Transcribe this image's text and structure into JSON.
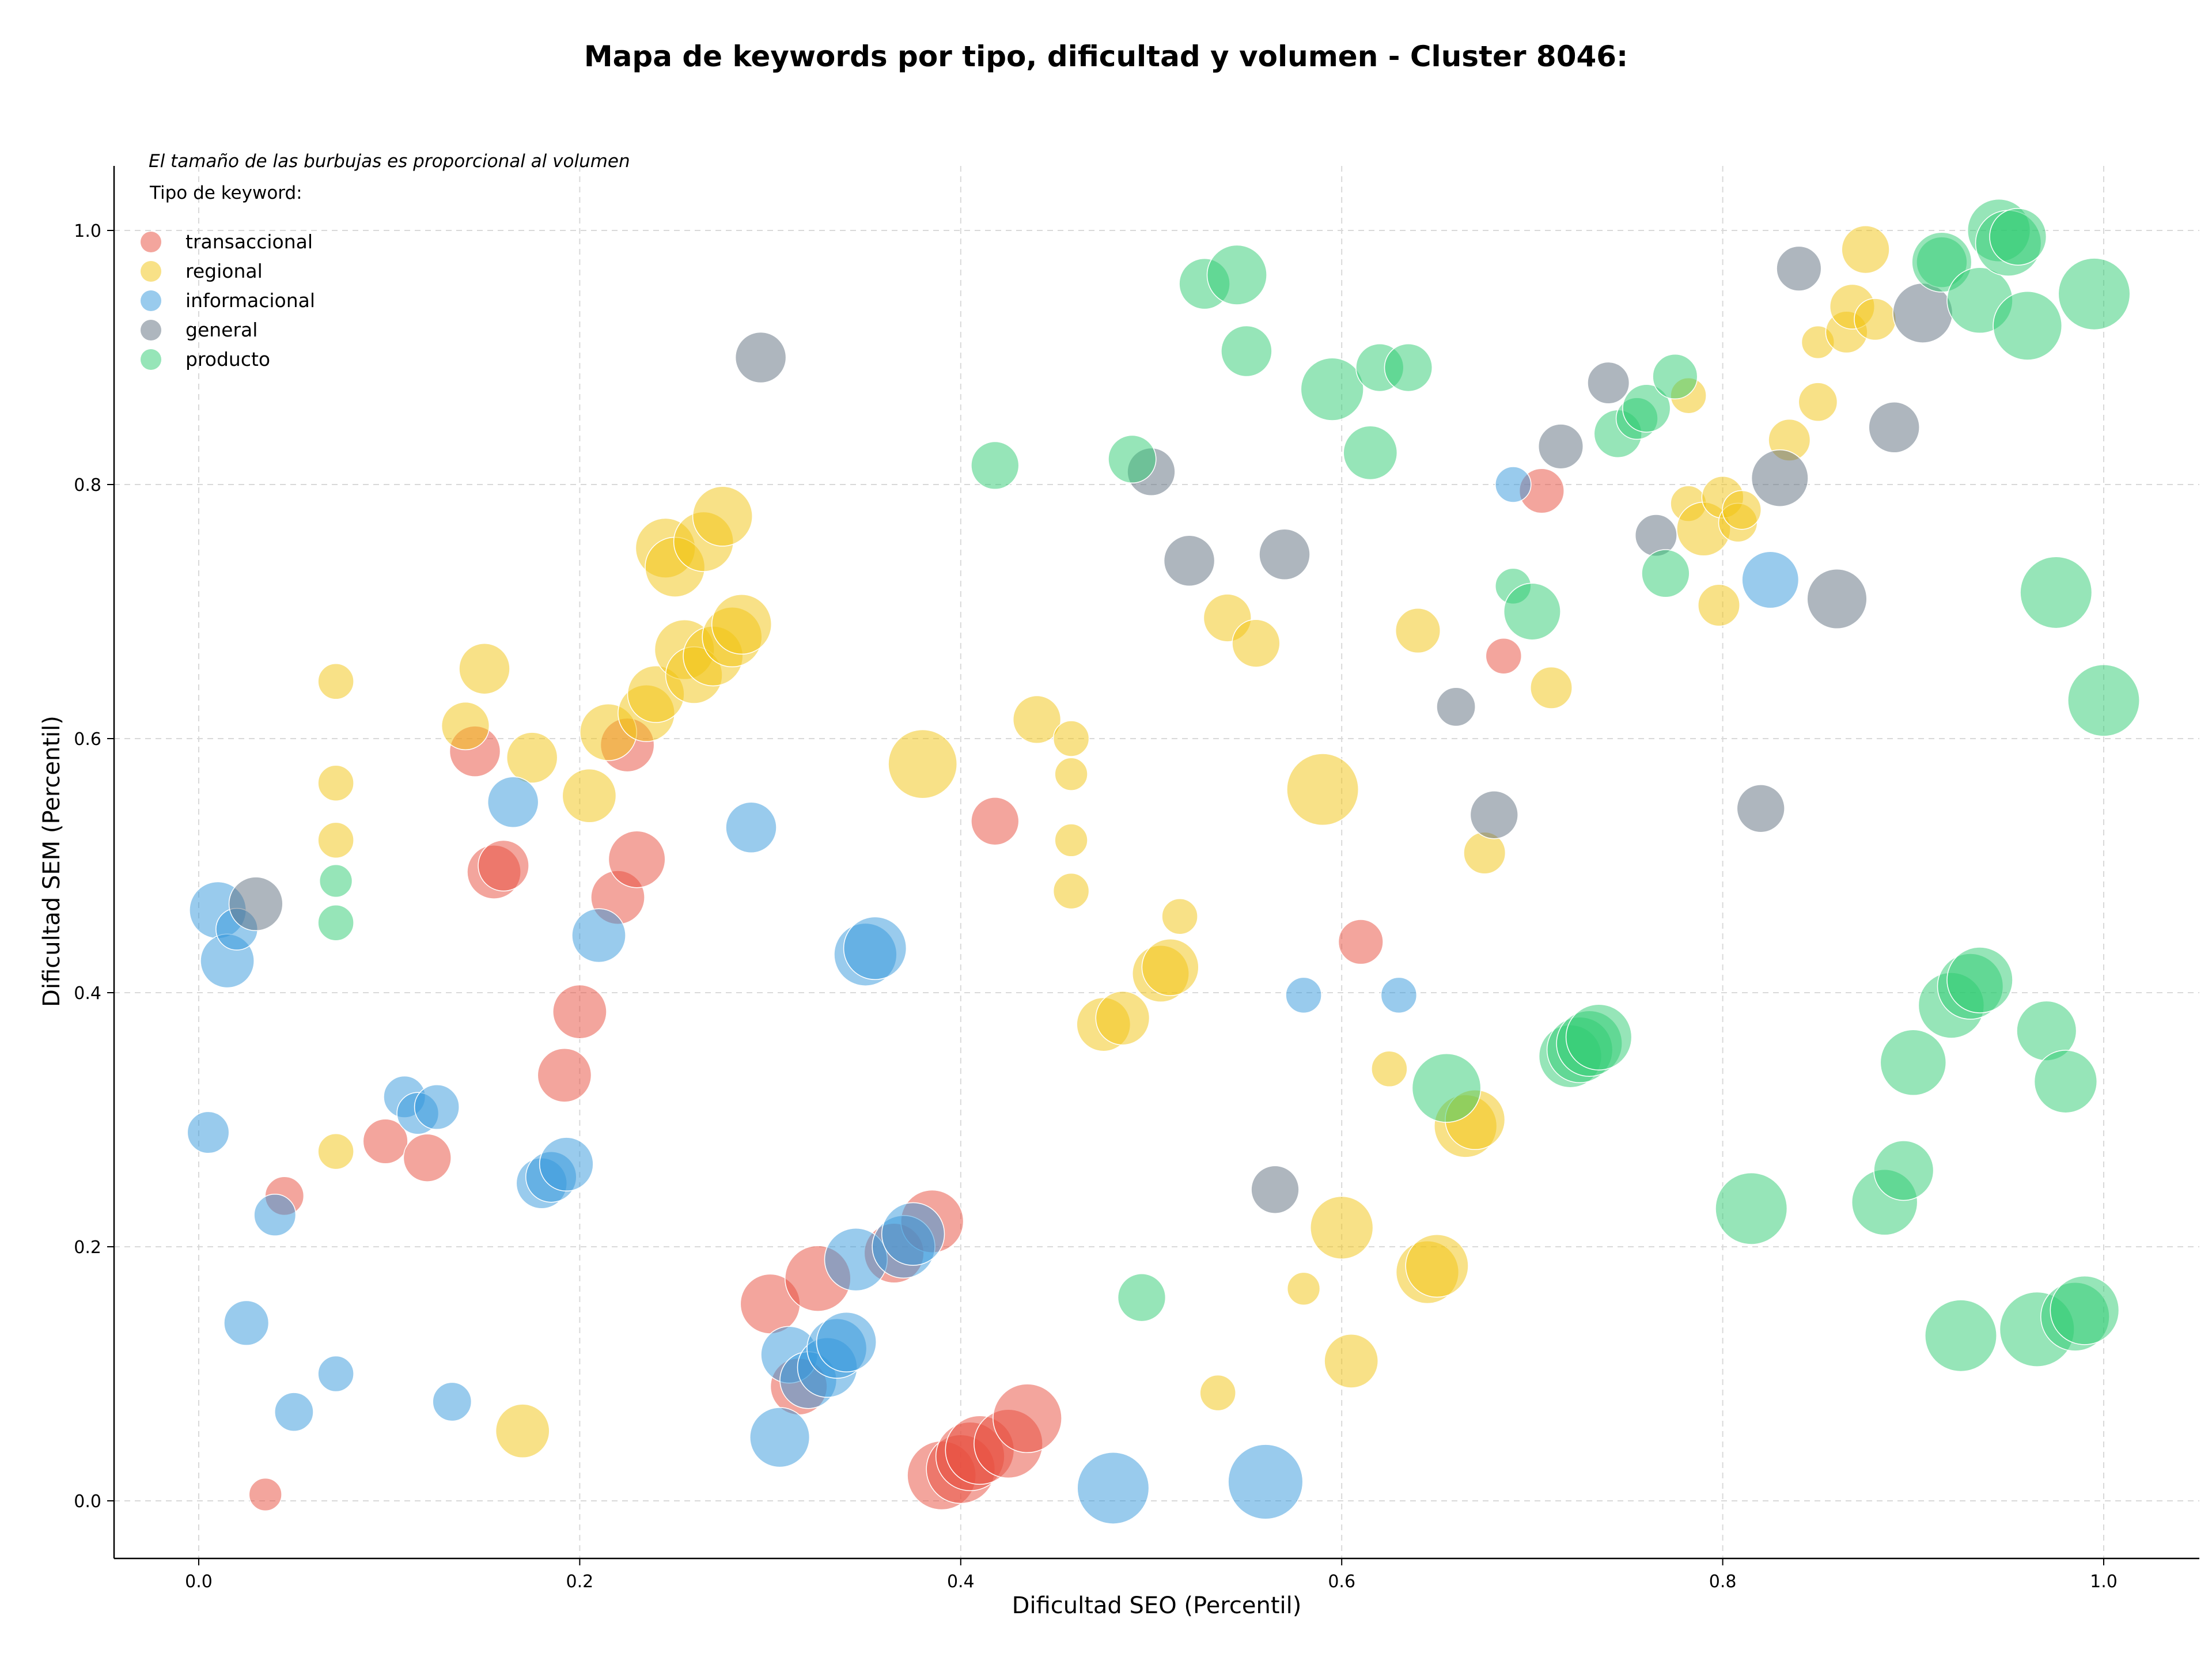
{
  "chart_data": {
    "type": "scatter",
    "title": "Mapa de keywords por tipo, dificultad y volumen - Cluster 8046:",
    "xlabel": "Dificultad SEO (Percentil)",
    "ylabel": "Dificultad SEM (Percentil)",
    "note": "El tamaño de las burbujas es proporcional al volumen",
    "legend_title": "Tipo de keyword:",
    "legend_position": "top-left",
    "xlim": [
      -0.045,
      1.048
    ],
    "ylim": [
      -0.045,
      1.05
    ],
    "x_ticks": [
      "0.0",
      "0.2",
      "0.4",
      "0.6",
      "0.8",
      "1.0"
    ],
    "y_ticks": [
      "0.0",
      "0.2",
      "0.4",
      "0.6",
      "0.8",
      "1.0"
    ],
    "grid": true,
    "series": [
      {
        "name": "transaccional",
        "color": "#e74c3c",
        "points": [
          [
            0.035,
            0.005,
            0.2
          ],
          [
            0.045,
            0.24,
            0.3
          ],
          [
            0.098,
            0.283,
            0.4
          ],
          [
            0.12,
            0.27,
            0.45
          ],
          [
            0.145,
            0.59,
            0.5
          ],
          [
            0.155,
            0.495,
            0.55
          ],
          [
            0.16,
            0.5,
            0.5
          ],
          [
            0.192,
            0.335,
            0.55
          ],
          [
            0.2,
            0.385,
            0.55
          ],
          [
            0.22,
            0.475,
            0.55
          ],
          [
            0.225,
            0.595,
            0.55
          ],
          [
            0.23,
            0.505,
            0.6
          ],
          [
            0.3,
            0.155,
            0.65
          ],
          [
            0.315,
            0.09,
            0.6
          ],
          [
            0.325,
            0.175,
            0.75
          ],
          [
            0.365,
            0.195,
            0.65
          ],
          [
            0.385,
            0.22,
            0.7
          ],
          [
            0.39,
            0.02,
            0.8
          ],
          [
            0.4,
            0.025,
            0.8
          ],
          [
            0.405,
            0.035,
            0.8
          ],
          [
            0.41,
            0.04,
            0.8
          ],
          [
            0.425,
            0.045,
            0.8
          ],
          [
            0.435,
            0.065,
            0.8
          ],
          [
            0.418,
            0.535,
            0.45
          ],
          [
            0.61,
            0.44,
            0.4
          ],
          [
            0.685,
            0.665,
            0.25
          ],
          [
            0.705,
            0.795,
            0.4
          ]
        ]
      },
      {
        "name": "regional",
        "color": "#f1c40f",
        "points": [
          [
            0.072,
            0.645,
            0.25
          ],
          [
            0.072,
            0.565,
            0.25
          ],
          [
            0.072,
            0.52,
            0.25
          ],
          [
            0.072,
            0.275,
            0.25
          ],
          [
            0.14,
            0.61,
            0.45
          ],
          [
            0.15,
            0.655,
            0.5
          ],
          [
            0.17,
            0.055,
            0.55
          ],
          [
            0.175,
            0.585,
            0.5
          ],
          [
            0.205,
            0.555,
            0.55
          ],
          [
            0.215,
            0.605,
            0.6
          ],
          [
            0.235,
            0.62,
            0.6
          ],
          [
            0.24,
            0.635,
            0.6
          ],
          [
            0.245,
            0.75,
            0.65
          ],
          [
            0.25,
            0.735,
            0.65
          ],
          [
            0.255,
            0.67,
            0.65
          ],
          [
            0.26,
            0.65,
            0.6
          ],
          [
            0.27,
            0.665,
            0.65
          ],
          [
            0.265,
            0.755,
            0.65
          ],
          [
            0.275,
            0.775,
            0.65
          ],
          [
            0.28,
            0.68,
            0.65
          ],
          [
            0.285,
            0.69,
            0.65
          ],
          [
            0.38,
            0.58,
            0.8
          ],
          [
            0.44,
            0.615,
            0.45
          ],
          [
            0.458,
            0.6,
            0.25
          ],
          [
            0.458,
            0.572,
            0.2
          ],
          [
            0.458,
            0.52,
            0.2
          ],
          [
            0.458,
            0.48,
            0.25
          ],
          [
            0.475,
            0.375,
            0.55
          ],
          [
            0.485,
            0.38,
            0.55
          ],
          [
            0.505,
            0.415,
            0.6
          ],
          [
            0.51,
            0.42,
            0.6
          ],
          [
            0.515,
            0.46,
            0.25
          ],
          [
            0.535,
            0.085,
            0.25
          ],
          [
            0.54,
            0.695,
            0.45
          ],
          [
            0.555,
            0.675,
            0.45
          ],
          [
            0.58,
            0.167,
            0.2
          ],
          [
            0.59,
            0.56,
            0.85
          ],
          [
            0.6,
            0.215,
            0.7
          ],
          [
            0.605,
            0.11,
            0.55
          ],
          [
            0.625,
            0.34,
            0.25
          ],
          [
            0.64,
            0.685,
            0.4
          ],
          [
            0.645,
            0.18,
            0.7
          ],
          [
            0.65,
            0.185,
            0.7
          ],
          [
            0.665,
            0.295,
            0.7
          ],
          [
            0.67,
            0.3,
            0.65
          ],
          [
            0.675,
            0.51,
            0.35
          ],
          [
            0.71,
            0.64,
            0.35
          ],
          [
            0.782,
            0.785,
            0.25
          ],
          [
            0.782,
            0.87,
            0.25
          ],
          [
            0.79,
            0.765,
            0.55
          ],
          [
            0.798,
            0.705,
            0.35
          ],
          [
            0.8,
            0.79,
            0.35
          ],
          [
            0.808,
            0.77,
            0.3
          ],
          [
            0.81,
            0.78,
            0.3
          ],
          [
            0.835,
            0.835,
            0.35
          ],
          [
            0.85,
            0.912,
            0.2
          ],
          [
            0.85,
            0.865,
            0.3
          ],
          [
            0.865,
            0.92,
            0.35
          ],
          [
            0.868,
            0.94,
            0.4
          ],
          [
            0.875,
            0.985,
            0.45
          ],
          [
            0.88,
            0.93,
            0.35
          ]
        ]
      },
      {
        "name": "informacional",
        "color": "#3498db",
        "points": [
          [
            0.005,
            0.29,
            0.35
          ],
          [
            0.01,
            0.465,
            0.6
          ],
          [
            0.015,
            0.425,
            0.55
          ],
          [
            0.02,
            0.45,
            0.35
          ],
          [
            0.025,
            0.14,
            0.4
          ],
          [
            0.04,
            0.225,
            0.35
          ],
          [
            0.05,
            0.07,
            0.3
          ],
          [
            0.072,
            0.1,
            0.25
          ],
          [
            0.108,
            0.318,
            0.35
          ],
          [
            0.115,
            0.305,
            0.35
          ],
          [
            0.125,
            0.31,
            0.4
          ],
          [
            0.133,
            0.078,
            0.3
          ],
          [
            0.165,
            0.55,
            0.5
          ],
          [
            0.18,
            0.25,
            0.5
          ],
          [
            0.185,
            0.255,
            0.5
          ],
          [
            0.193,
            0.265,
            0.55
          ],
          [
            0.21,
            0.445,
            0.55
          ],
          [
            0.29,
            0.53,
            0.5
          ],
          [
            0.305,
            0.05,
            0.65
          ],
          [
            0.31,
            0.115,
            0.6
          ],
          [
            0.32,
            0.095,
            0.6
          ],
          [
            0.33,
            0.105,
            0.65
          ],
          [
            0.335,
            0.12,
            0.65
          ],
          [
            0.34,
            0.125,
            0.65
          ],
          [
            0.345,
            0.19,
            0.7
          ],
          [
            0.35,
            0.43,
            0.7
          ],
          [
            0.355,
            0.435,
            0.7
          ],
          [
            0.37,
            0.2,
            0.7
          ],
          [
            0.375,
            0.21,
            0.7
          ],
          [
            0.48,
            0.01,
            0.85
          ],
          [
            0.56,
            0.015,
            0.9
          ],
          [
            0.58,
            0.398,
            0.25
          ],
          [
            0.63,
            0.398,
            0.25
          ],
          [
            0.69,
            0.8,
            0.25
          ],
          [
            0.825,
            0.725,
            0.6
          ]
        ]
      },
      {
        "name": "general",
        "color": "#5d6d7e",
        "points": [
          [
            0.03,
            0.47,
            0.55
          ],
          [
            0.295,
            0.9,
            0.5
          ],
          [
            0.5,
            0.81,
            0.45
          ],
          [
            0.52,
            0.74,
            0.5
          ],
          [
            0.565,
            0.245,
            0.45
          ],
          [
            0.57,
            0.745,
            0.5
          ],
          [
            0.66,
            0.625,
            0.3
          ],
          [
            0.68,
            0.54,
            0.45
          ],
          [
            0.715,
            0.83,
            0.4
          ],
          [
            0.74,
            0.88,
            0.35
          ],
          [
            0.765,
            0.76,
            0.35
          ],
          [
            0.82,
            0.545,
            0.45
          ],
          [
            0.83,
            0.805,
            0.6
          ],
          [
            0.84,
            0.97,
            0.4
          ],
          [
            0.86,
            0.71,
            0.65
          ],
          [
            0.89,
            0.845,
            0.5
          ],
          [
            0.905,
            0.935,
            0.65
          ]
        ]
      },
      {
        "name": "producto",
        "color": "#2ecc71",
        "points": [
          [
            0.072,
            0.488,
            0.2
          ],
          [
            0.072,
            0.455,
            0.25
          ],
          [
            0.418,
            0.815,
            0.45
          ],
          [
            0.49,
            0.82,
            0.45
          ],
          [
            0.495,
            0.16,
            0.45
          ],
          [
            0.528,
            0.958,
            0.5
          ],
          [
            0.545,
            0.965,
            0.65
          ],
          [
            0.55,
            0.905,
            0.5
          ],
          [
            0.595,
            0.875,
            0.7
          ],
          [
            0.615,
            0.825,
            0.55
          ],
          [
            0.62,
            0.892,
            0.45
          ],
          [
            0.635,
            0.892,
            0.45
          ],
          [
            0.655,
            0.325,
            0.8
          ],
          [
            0.69,
            0.72,
            0.25
          ],
          [
            0.7,
            0.7,
            0.6
          ],
          [
            0.72,
            0.35,
            0.7
          ],
          [
            0.725,
            0.355,
            0.75
          ],
          [
            0.73,
            0.36,
            0.75
          ],
          [
            0.735,
            0.365,
            0.75
          ],
          [
            0.745,
            0.84,
            0.45
          ],
          [
            0.755,
            0.852,
            0.35
          ],
          [
            0.76,
            0.86,
            0.45
          ],
          [
            0.77,
            0.73,
            0.45
          ],
          [
            0.775,
            0.885,
            0.4
          ],
          [
            0.815,
            0.23,
            0.85
          ],
          [
            0.885,
            0.235,
            0.75
          ],
          [
            0.895,
            0.26,
            0.65
          ],
          [
            0.9,
            0.345,
            0.75
          ],
          [
            0.915,
            0.975,
            0.5
          ],
          [
            0.915,
            0.975,
            0.65
          ],
          [
            0.92,
            0.39,
            0.75
          ],
          [
            0.925,
            0.13,
            0.85
          ],
          [
            0.93,
            0.405,
            0.75
          ],
          [
            0.935,
            0.41,
            0.75
          ],
          [
            0.935,
            0.945,
            0.75
          ],
          [
            0.945,
            1.0,
            0.7
          ],
          [
            0.95,
            0.99,
            0.75
          ],
          [
            0.955,
            0.995,
            0.6
          ],
          [
            0.96,
            0.925,
            0.8
          ],
          [
            0.965,
            0.135,
            0.9
          ],
          [
            0.97,
            0.37,
            0.65
          ],
          [
            0.975,
            0.715,
            0.85
          ],
          [
            0.98,
            0.33,
            0.7
          ],
          [
            0.985,
            0.145,
            0.8
          ],
          [
            0.99,
            0.15,
            0.8
          ],
          [
            0.995,
            0.95,
            0.85
          ],
          [
            1.0,
            0.63,
            0.85
          ]
        ]
      }
    ]
  }
}
